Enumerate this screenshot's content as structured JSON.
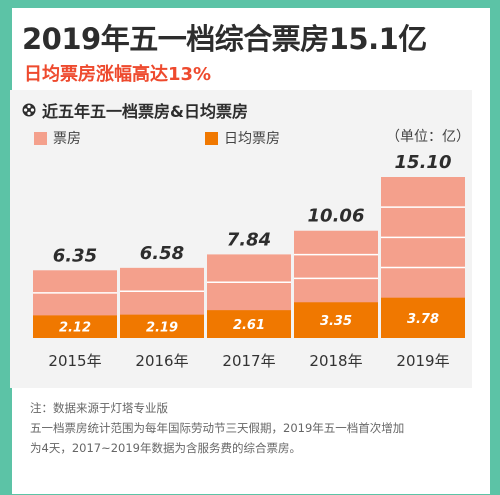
{
  "header": {
    "title": "2019年五一档综合票房15.1亿",
    "subtitle": "日均票房涨幅高达13%"
  },
  "chart_panel": {
    "title": "近五年五一档票房&日均票房",
    "unit": "（单位：亿）",
    "legend": [
      {
        "label": "票房",
        "color": "#f4a08c"
      },
      {
        "label": "日均票房",
        "color": "#f07800"
      }
    ]
  },
  "chart_data": {
    "type": "bar",
    "categories": [
      "2015年",
      "2016年",
      "2017年",
      "2018年",
      "2019年"
    ],
    "series": [
      {
        "name": "票房",
        "values": [
          6.35,
          6.58,
          7.84,
          10.06,
          15.1
        ],
        "labels": [
          "6.35",
          "6.58",
          "7.84",
          "10.06",
          "15.10"
        ],
        "color": "#f4a08c"
      },
      {
        "name": "日均票房",
        "values": [
          2.12,
          2.19,
          2.61,
          3.35,
          3.78
        ],
        "labels": [
          "2.12",
          "2.19",
          "2.61",
          "3.35",
          "3.78"
        ],
        "color": "#f07800"
      }
    ],
    "title": "近五年五一档票房&日均票房",
    "ylim": [
      0,
      16
    ],
    "grid": false,
    "legend_position": "top-left"
  },
  "notes": [
    "注：数据来源于灯塔专业版",
    "五一档票房统计范围为每年国际劳动节三天假期，2019年五一档首次增加",
    "为4天，2017~2019年数据为含服务费的综合票房。"
  ]
}
